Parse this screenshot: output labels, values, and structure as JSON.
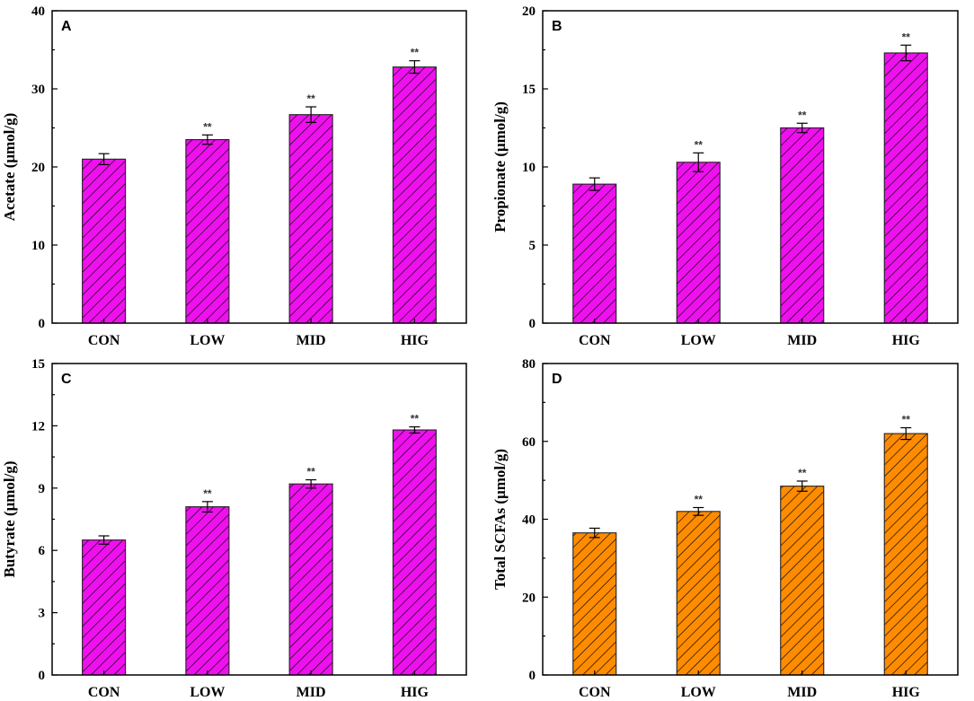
{
  "chart_data": [
    {
      "panel": "A",
      "type": "bar",
      "categories": [
        "CON",
        "LOW",
        "MID",
        "HIG"
      ],
      "values": [
        21.0,
        23.5,
        26.7,
        32.8
      ],
      "errors": [
        0.7,
        0.6,
        1.0,
        0.8
      ],
      "significance": [
        "",
        "**",
        "**",
        "**"
      ],
      "ylabel": "Acetate (μmol/g)",
      "ylim": [
        0,
        40
      ],
      "yticks": [
        0,
        10,
        20,
        30,
        40
      ],
      "color": "#ee11ee"
    },
    {
      "panel": "B",
      "type": "bar",
      "categories": [
        "CON",
        "LOW",
        "MID",
        "HIG"
      ],
      "values": [
        8.9,
        10.3,
        12.5,
        17.3
      ],
      "errors": [
        0.4,
        0.6,
        0.3,
        0.5
      ],
      "significance": [
        "",
        "**",
        "**",
        "**"
      ],
      "ylabel": "Propionate (μmol/g)",
      "ylim": [
        0,
        20
      ],
      "yticks": [
        0,
        5,
        10,
        15,
        20
      ],
      "color": "#ee11ee"
    },
    {
      "panel": "C",
      "type": "bar",
      "categories": [
        "CON",
        "LOW",
        "MID",
        "HIG"
      ],
      "values": [
        6.5,
        8.1,
        9.2,
        11.8
      ],
      "errors": [
        0.2,
        0.25,
        0.2,
        0.15
      ],
      "significance": [
        "",
        "**",
        "**",
        "**"
      ],
      "ylabel": "Butyrate (μmol/g)",
      "ylim": [
        0,
        15
      ],
      "yticks": [
        0,
        3,
        6,
        9,
        12,
        15
      ],
      "color": "#ee11ee"
    },
    {
      "panel": "D",
      "type": "bar",
      "categories": [
        "CON",
        "LOW",
        "MID",
        "HIG"
      ],
      "values": [
        36.5,
        42.0,
        48.5,
        62.0
      ],
      "errors": [
        1.2,
        1.0,
        1.3,
        1.5
      ],
      "significance": [
        "",
        "**",
        "**",
        "**"
      ],
      "ylabel": "Total SCFAs (μmol/g)",
      "ylim": [
        0,
        80
      ],
      "yticks": [
        0,
        20,
        40,
        60,
        80
      ],
      "color": "#ff8c00"
    }
  ]
}
